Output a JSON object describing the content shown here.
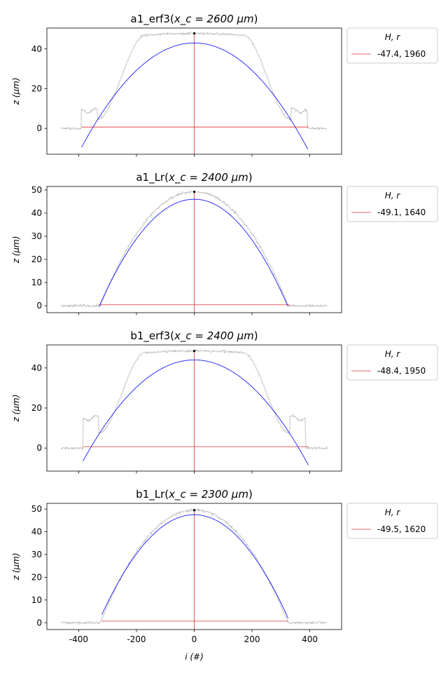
{
  "colors": {
    "measured": "#a9a9a9",
    "fit": "#0000ff",
    "reference": "#e03030",
    "peak": "#000000",
    "legend_border": "#cccccc"
  },
  "shared_x": {
    "label": "i (#)",
    "range": [
      -510,
      510
    ],
    "ticks": [
      -400,
      -200,
      0,
      200,
      400
    ]
  },
  "chart_data": [
    {
      "type": "line",
      "title": "a1_erf3(x_c = 2600 μm)",
      "title_plain": "a1_erf3(",
      "title_math": "x_c = 2600 μm",
      "ylabel": "z (μm)",
      "ylim": [
        -13,
        50.5
      ],
      "yticks": [
        0,
        20,
        40
      ],
      "legend": {
        "title": "H, r",
        "entry": "-47.4, 1960",
        "placement": "outside-upper-right"
      },
      "profile": {
        "x_extent": [
          -460,
          460
        ],
        "edge": 390,
        "top_half_width": 170,
        "peak": 47.8,
        "step_height": 6,
        "inner_level": 4.5,
        "baseline": 0
      },
      "fit": {
        "vertex_z": 43,
        "x_range": [
          -390,
          395
        ],
        "z_at_ends": [
          -9.5,
          -11
        ]
      },
      "reference_line": {
        "z": 0.7,
        "x_range": [
          -390,
          395
        ]
      },
      "peak_marker": {
        "x": 0,
        "z": 47.8
      }
    },
    {
      "type": "line",
      "title": "a1_Lr(x_c = 2400 μm)",
      "title_plain": "a1_Lr(",
      "title_math": "x_c = 2400 μm",
      "ylabel": "z (μm)",
      "ylim": [
        -3,
        51.5
      ],
      "yticks": [
        0,
        10,
        20,
        30,
        40,
        50
      ],
      "legend": {
        "title": "H, r",
        "entry": "-49.1, 1640",
        "placement": "outside-upper-right"
      },
      "profile": {
        "x_extent": [
          -460,
          460
        ],
        "edge": 325,
        "peak": 49.2,
        "baseline": 0
      },
      "fit": {
        "vertex_z": 46,
        "x_range": [
          -330,
          325
        ],
        "z_at_ends": [
          -0.5,
          -0.5
        ]
      },
      "reference_line": {
        "z": 0.4,
        "x_range": [
          -330,
          330
        ]
      },
      "peak_marker": {
        "x": 0,
        "z": 49.2
      }
    },
    {
      "type": "line",
      "title": "b1_erf3(x_c = 2400 μm)",
      "title_plain": "b1_erf3(",
      "title_math": "x_c = 2400 μm",
      "ylabel": "z (μm)",
      "ylim": [
        -11.5,
        51.5
      ],
      "yticks": [
        0,
        20,
        40
      ],
      "legend": {
        "title": "H, r",
        "entry": "-48.4, 1950",
        "placement": "outside-upper-right"
      },
      "profile": {
        "x_extent": [
          -460,
          460
        ],
        "edge": 385,
        "top_half_width": 170,
        "peak": 48.5,
        "step_height": 9,
        "inner_level": 7.5,
        "baseline": 0
      },
      "fit": {
        "vertex_z": 44,
        "x_range": [
          -385,
          395
        ],
        "z_at_ends": [
          -6.5,
          -8.5
        ]
      },
      "reference_line": {
        "z": 0.7,
        "x_range": [
          -385,
          395
        ]
      },
      "peak_marker": {
        "x": 0,
        "z": 48.5
      }
    },
    {
      "type": "line",
      "title": "b1_Lr(x_c = 2300 μm)",
      "title_plain": "b1_Lr(",
      "title_math": "x_c = 2300 μm",
      "ylabel": "z (μm)",
      "ylim": [
        -3,
        52.5
      ],
      "yticks": [
        0,
        10,
        20,
        30,
        40,
        50
      ],
      "legend": {
        "title": "H, r",
        "entry": "-49.5, 1620",
        "placement": "outside-upper-right"
      },
      "profile": {
        "x_extent": [
          -460,
          460
        ],
        "edge": 325,
        "peak": 49.5,
        "baseline": 0
      },
      "fit": {
        "vertex_z": 47.5,
        "x_range": [
          -320,
          325
        ],
        "z_at_ends": [
          3.5,
          2
        ]
      },
      "reference_line": {
        "z": 0.7,
        "x_range": [
          -320,
          325
        ]
      },
      "peak_marker": {
        "x": 0,
        "z": 49.5
      }
    }
  ]
}
